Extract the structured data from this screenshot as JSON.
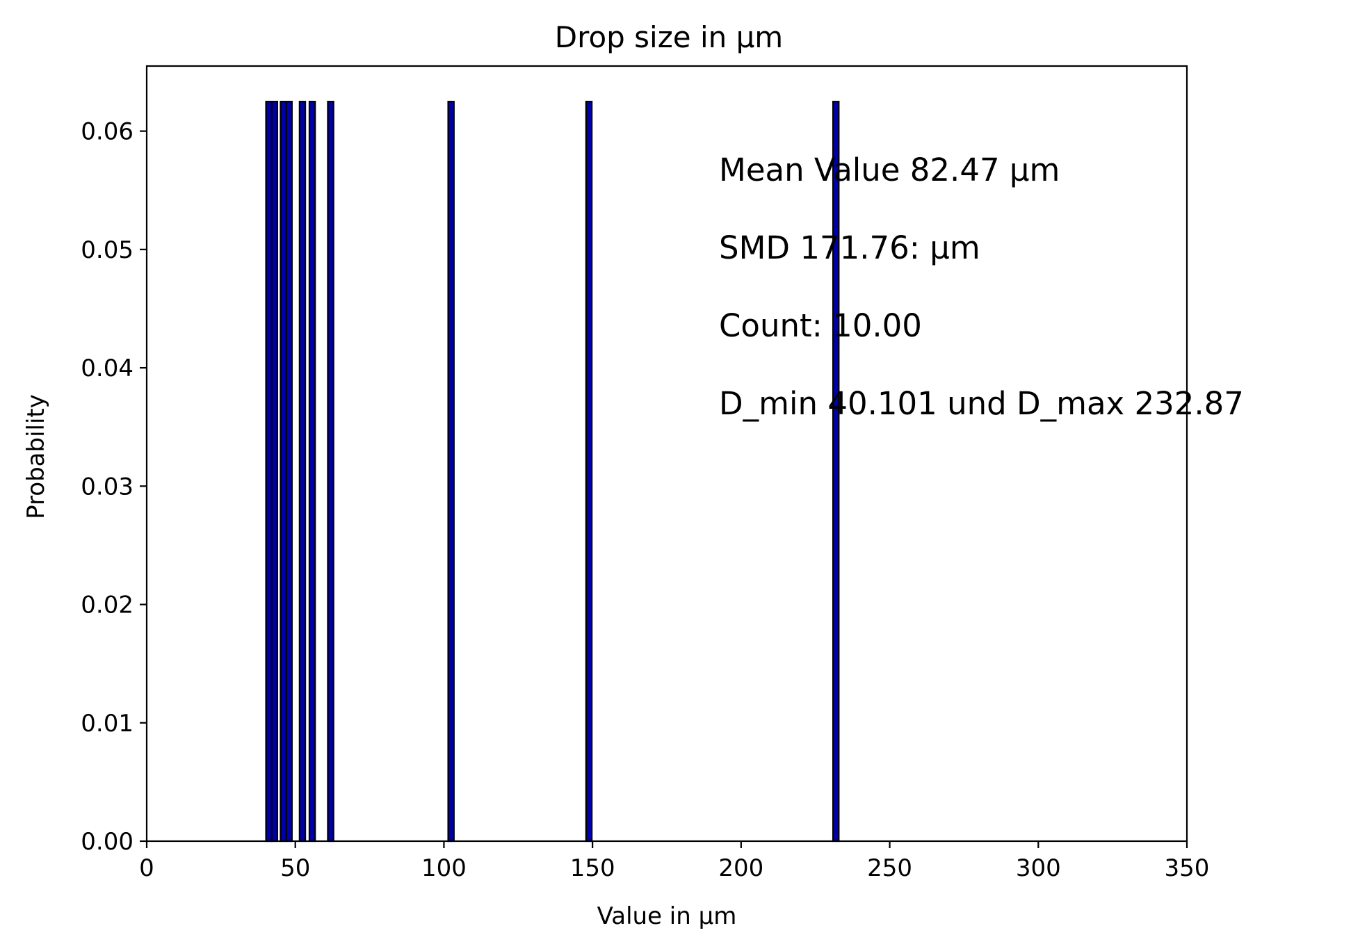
{
  "chart_data": {
    "type": "bar",
    "title": "Drop size in  μm",
    "xlabel": "Value in μm",
    "ylabel": "Probability",
    "xlim": [
      0,
      350
    ],
    "ylim": [
      0,
      0.0655
    ],
    "xticks": [
      0,
      50,
      100,
      150,
      200,
      250,
      300,
      350
    ],
    "yticks": [
      0.0,
      0.01,
      0.02,
      0.03,
      0.04,
      0.05,
      0.06
    ],
    "xtick_labels": [
      "0",
      "50",
      "100",
      "150",
      "200",
      "250",
      "300",
      "350"
    ],
    "ytick_labels": [
      "0.00",
      "0.01",
      "0.02",
      "0.03",
      "0.04",
      "0.05",
      "0.06"
    ],
    "grid": false,
    "bar_color": "#0000aa",
    "bar_edge_color": "#000000",
    "bin_width": 1.93,
    "bars": [
      {
        "x": 41.1,
        "value": 0.0625
      },
      {
        "x": 43.0,
        "value": 0.0625
      },
      {
        "x": 46.0,
        "value": 0.0625
      },
      {
        "x": 47.9,
        "value": 0.0625
      },
      {
        "x": 52.4,
        "value": 0.0625
      },
      {
        "x": 55.7,
        "value": 0.0625
      },
      {
        "x": 61.9,
        "value": 0.0625
      },
      {
        "x": 102.4,
        "value": 0.0625
      },
      {
        "x": 148.8,
        "value": 0.0625
      },
      {
        "x": 231.9,
        "value": 0.0625
      }
    ],
    "annotations": [
      "Mean Value  82.47 μm",
      "SMD   171.76:  μm",
      "Count:  10.00",
      "D_min   40.101 und D_max 232.87"
    ]
  }
}
